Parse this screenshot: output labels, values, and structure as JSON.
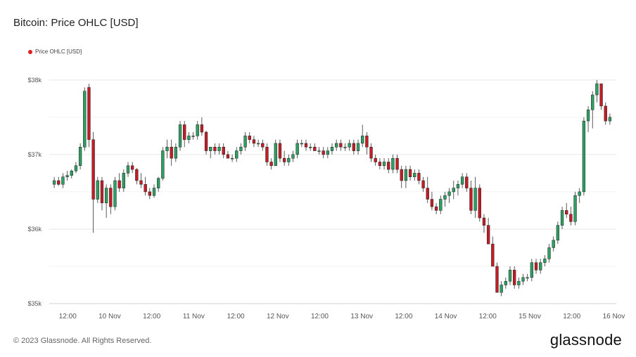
{
  "page": {
    "title": "Bitcoin: Price OHLC [USD]",
    "footer": "© 2023 Glassnode. All Rights Reserved.",
    "brand": "glassnode"
  },
  "chart_data": {
    "type": "candlestick",
    "title": "Bitcoin: Price OHLC [USD]",
    "legend": {
      "placement": "top-left",
      "entries": [
        {
          "name": "Price OHLC [USD]",
          "color": "#e02020"
        }
      ]
    },
    "colors": {
      "up": "#2e9e63",
      "down": "#c21d27"
    },
    "ylim": [
      35000,
      38300
    ],
    "yticks": [
      {
        "value": 35000,
        "label": "$35k"
      },
      {
        "value": 36000,
        "label": "$36k"
      },
      {
        "value": 37000,
        "label": "$37k"
      },
      {
        "value": 38000,
        "label": "$38k"
      }
    ],
    "xlim": [
      -0.72,
      6.03
    ],
    "xticks": [
      {
        "x": -0.5,
        "label": "12:00"
      },
      {
        "x": 0,
        "label": "10 Nov"
      },
      {
        "x": 0.5,
        "label": "12:00"
      },
      {
        "x": 1,
        "label": "11 Nov"
      },
      {
        "x": 1.5,
        "label": "12:00"
      },
      {
        "x": 2,
        "label": "12 Nov"
      },
      {
        "x": 2.5,
        "label": "12:00"
      },
      {
        "x": 3,
        "label": "13 Nov"
      },
      {
        "x": 3.5,
        "label": "12:00"
      },
      {
        "x": 4,
        "label": "14 Nov"
      },
      {
        "x": 4.5,
        "label": "12:00"
      },
      {
        "x": 5,
        "label": "15 Nov"
      },
      {
        "x": 5.5,
        "label": "12:00"
      },
      {
        "x": 6,
        "label": "16 Nov"
      }
    ],
    "grid": true,
    "candles": [
      [
        36600,
        36700,
        36550,
        36650
      ],
      [
        36650,
        36700,
        36580,
        36600
      ],
      [
        36600,
        36750,
        36550,
        36700
      ],
      [
        36700,
        36780,
        36650,
        36720
      ],
      [
        36720,
        36800,
        36680,
        36780
      ],
      [
        36780,
        36900,
        36750,
        36850
      ],
      [
        36850,
        37150,
        36800,
        37100
      ],
      [
        37100,
        37900,
        37050,
        37850
      ],
      [
        37900,
        37950,
        37100,
        37200
      ],
      [
        37200,
        37300,
        35950,
        36400
      ],
      [
        36400,
        36700,
        36350,
        36650
      ],
      [
        36650,
        36700,
        36250,
        36350
      ],
      [
        36350,
        36600,
        36150,
        36550
      ],
      [
        36550,
        36600,
        36200,
        36300
      ],
      [
        36300,
        36700,
        36250,
        36650
      ],
      [
        36650,
        36750,
        36500,
        36550
      ],
      [
        36550,
        36800,
        36500,
        36750
      ],
      [
        36750,
        36900,
        36700,
        36850
      ],
      [
        36850,
        36900,
        36750,
        36800
      ],
      [
        36800,
        36820,
        36600,
        36650
      ],
      [
        36650,
        36750,
        36550,
        36600
      ],
      [
        36600,
        36700,
        36450,
        36500
      ],
      [
        36500,
        36550,
        36400,
        36450
      ],
      [
        36450,
        36600,
        36420,
        36550
      ],
      [
        36550,
        36700,
        36500,
        36680
      ],
      [
        36680,
        37100,
        36650,
        37050
      ],
      [
        37050,
        37200,
        36950,
        37100
      ],
      [
        37100,
        37200,
        36850,
        36950
      ],
      [
        36950,
        37150,
        36900,
        37100
      ],
      [
        37100,
        37450,
        37050,
        37400
      ],
      [
        37400,
        37450,
        37100,
        37200
      ],
      [
        37200,
        37300,
        37150,
        37250
      ],
      [
        37250,
        37300,
        37200,
        37250
      ],
      [
        37250,
        37450,
        37200,
        37400
      ],
      [
        37400,
        37500,
        37250,
        37300
      ],
      [
        37300,
        37320,
        37000,
        37050
      ],
      [
        37050,
        37100,
        36950,
        37100
      ],
      [
        37100,
        37150,
        37000,
        37050
      ],
      [
        37050,
        37150,
        37000,
        37100
      ],
      [
        37100,
        37150,
        36950,
        37000
      ],
      [
        37000,
        37050,
        36950,
        36950
      ],
      [
        36950,
        37000,
        36900,
        36950
      ],
      [
        36950,
        37100,
        36900,
        37050
      ],
      [
        37050,
        37150,
        37000,
        37100
      ],
      [
        37100,
        37300,
        37050,
        37250
      ],
      [
        37250,
        37300,
        37150,
        37200
      ],
      [
        37200,
        37250,
        37100,
        37150
      ],
      [
        37150,
        37200,
        37100,
        37150
      ],
      [
        37150,
        37200,
        37050,
        37100
      ],
      [
        37100,
        37150,
        36850,
        36900
      ],
      [
        36900,
        36950,
        36800,
        36850
      ],
      [
        36850,
        37200,
        36850,
        37150
      ],
      [
        37150,
        37200,
        36900,
        36950
      ],
      [
        36950,
        37050,
        36850,
        36900
      ],
      [
        36900,
        37000,
        36850,
        36950
      ],
      [
        36950,
        37050,
        36900,
        37000
      ],
      [
        37000,
        37200,
        36950,
        37150
      ],
      [
        37150,
        37200,
        37100,
        37150
      ],
      [
        37150,
        37200,
        37050,
        37100
      ],
      [
        37100,
        37150,
        37050,
        37100
      ],
      [
        37100,
        37150,
        37050,
        37050
      ],
      [
        37050,
        37100,
        37000,
        37050
      ],
      [
        37050,
        37100,
        36950,
        37000
      ],
      [
        37000,
        37100,
        36950,
        37050
      ],
      [
        37050,
        37150,
        37000,
        37100
      ],
      [
        37100,
        37200,
        37050,
        37150
      ],
      [
        37150,
        37200,
        37050,
        37100
      ],
      [
        37100,
        37150,
        37050,
        37100
      ],
      [
        37100,
        37200,
        37050,
        37150
      ],
      [
        37150,
        37200,
        37000,
        37050
      ],
      [
        37050,
        37200,
        37000,
        37150
      ],
      [
        37150,
        37400,
        37100,
        37250
      ],
      [
        37250,
        37300,
        37000,
        37100
      ],
      [
        37100,
        37150,
        36900,
        36950
      ],
      [
        36950,
        37000,
        36850,
        36900
      ],
      [
        36900,
        36950,
        36800,
        36850
      ],
      [
        36850,
        36950,
        36800,
        36900
      ],
      [
        36900,
        36950,
        36750,
        36800
      ],
      [
        36800,
        37000,
        36750,
        36950
      ],
      [
        36950,
        37000,
        36750,
        36800
      ],
      [
        36800,
        36850,
        36550,
        36650
      ],
      [
        36650,
        36850,
        36550,
        36800
      ],
      [
        36800,
        36850,
        36650,
        36700
      ],
      [
        36700,
        36800,
        36650,
        36750
      ],
      [
        36750,
        36800,
        36600,
        36650
      ],
      [
        36650,
        36700,
        36500,
        36550
      ],
      [
        36550,
        36700,
        36350,
        36400
      ],
      [
        36400,
        36500,
        36250,
        36300
      ],
      [
        36300,
        36350,
        36200,
        36250
      ],
      [
        36250,
        36450,
        36200,
        36400
      ],
      [
        36400,
        36500,
        36300,
        36450
      ],
      [
        36450,
        36550,
        36350,
        36500
      ],
      [
        36500,
        36650,
        36400,
        36550
      ],
      [
        36550,
        36650,
        36450,
        36600
      ],
      [
        36600,
        36750,
        36550,
        36700
      ],
      [
        36700,
        36750,
        36500,
        36550
      ],
      [
        36550,
        36650,
        36200,
        36250
      ],
      [
        36250,
        36700,
        36150,
        36550
      ],
      [
        36550,
        36600,
        36100,
        36150
      ],
      [
        36150,
        36200,
        35950,
        36050
      ],
      [
        36050,
        36150,
        35800,
        35800
      ],
      [
        35800,
        35900,
        35500,
        35500
      ],
      [
        35500,
        35550,
        35150,
        35150
      ],
      [
        35150,
        35300,
        35100,
        35250
      ],
      [
        35250,
        35350,
        35200,
        35300
      ],
      [
        35300,
        35500,
        35250,
        35450
      ],
      [
        35450,
        35500,
        35200,
        35250
      ],
      [
        35250,
        35350,
        35200,
        35300
      ],
      [
        35300,
        35400,
        35250,
        35350
      ],
      [
        35350,
        35400,
        35300,
        35350
      ],
      [
        35350,
        35600,
        35300,
        35550
      ],
      [
        35550,
        35600,
        35400,
        35450
      ],
      [
        35450,
        35600,
        35400,
        35550
      ],
      [
        35550,
        35650,
        35500,
        35600
      ],
      [
        35600,
        35800,
        35550,
        35750
      ],
      [
        35750,
        35900,
        35700,
        35850
      ],
      [
        35850,
        36100,
        35800,
        36050
      ],
      [
        36050,
        36300,
        36000,
        36250
      ],
      [
        36250,
        36350,
        36150,
        36200
      ],
      [
        36200,
        36300,
        36050,
        36100
      ],
      [
        36100,
        36500,
        36050,
        36450
      ],
      [
        36450,
        36550,
        36350,
        36500
      ],
      [
        36500,
        37500,
        36450,
        37450
      ],
      [
        37450,
        37650,
        37300,
        37600
      ],
      [
        37600,
        37850,
        37350,
        37800
      ],
      [
        37800,
        38000,
        37700,
        37950
      ],
      [
        37950,
        37950,
        37600,
        37650
      ],
      [
        37650,
        37700,
        37400,
        37450
      ],
      [
        37450,
        37550,
        37400,
        37500
      ]
    ]
  }
}
